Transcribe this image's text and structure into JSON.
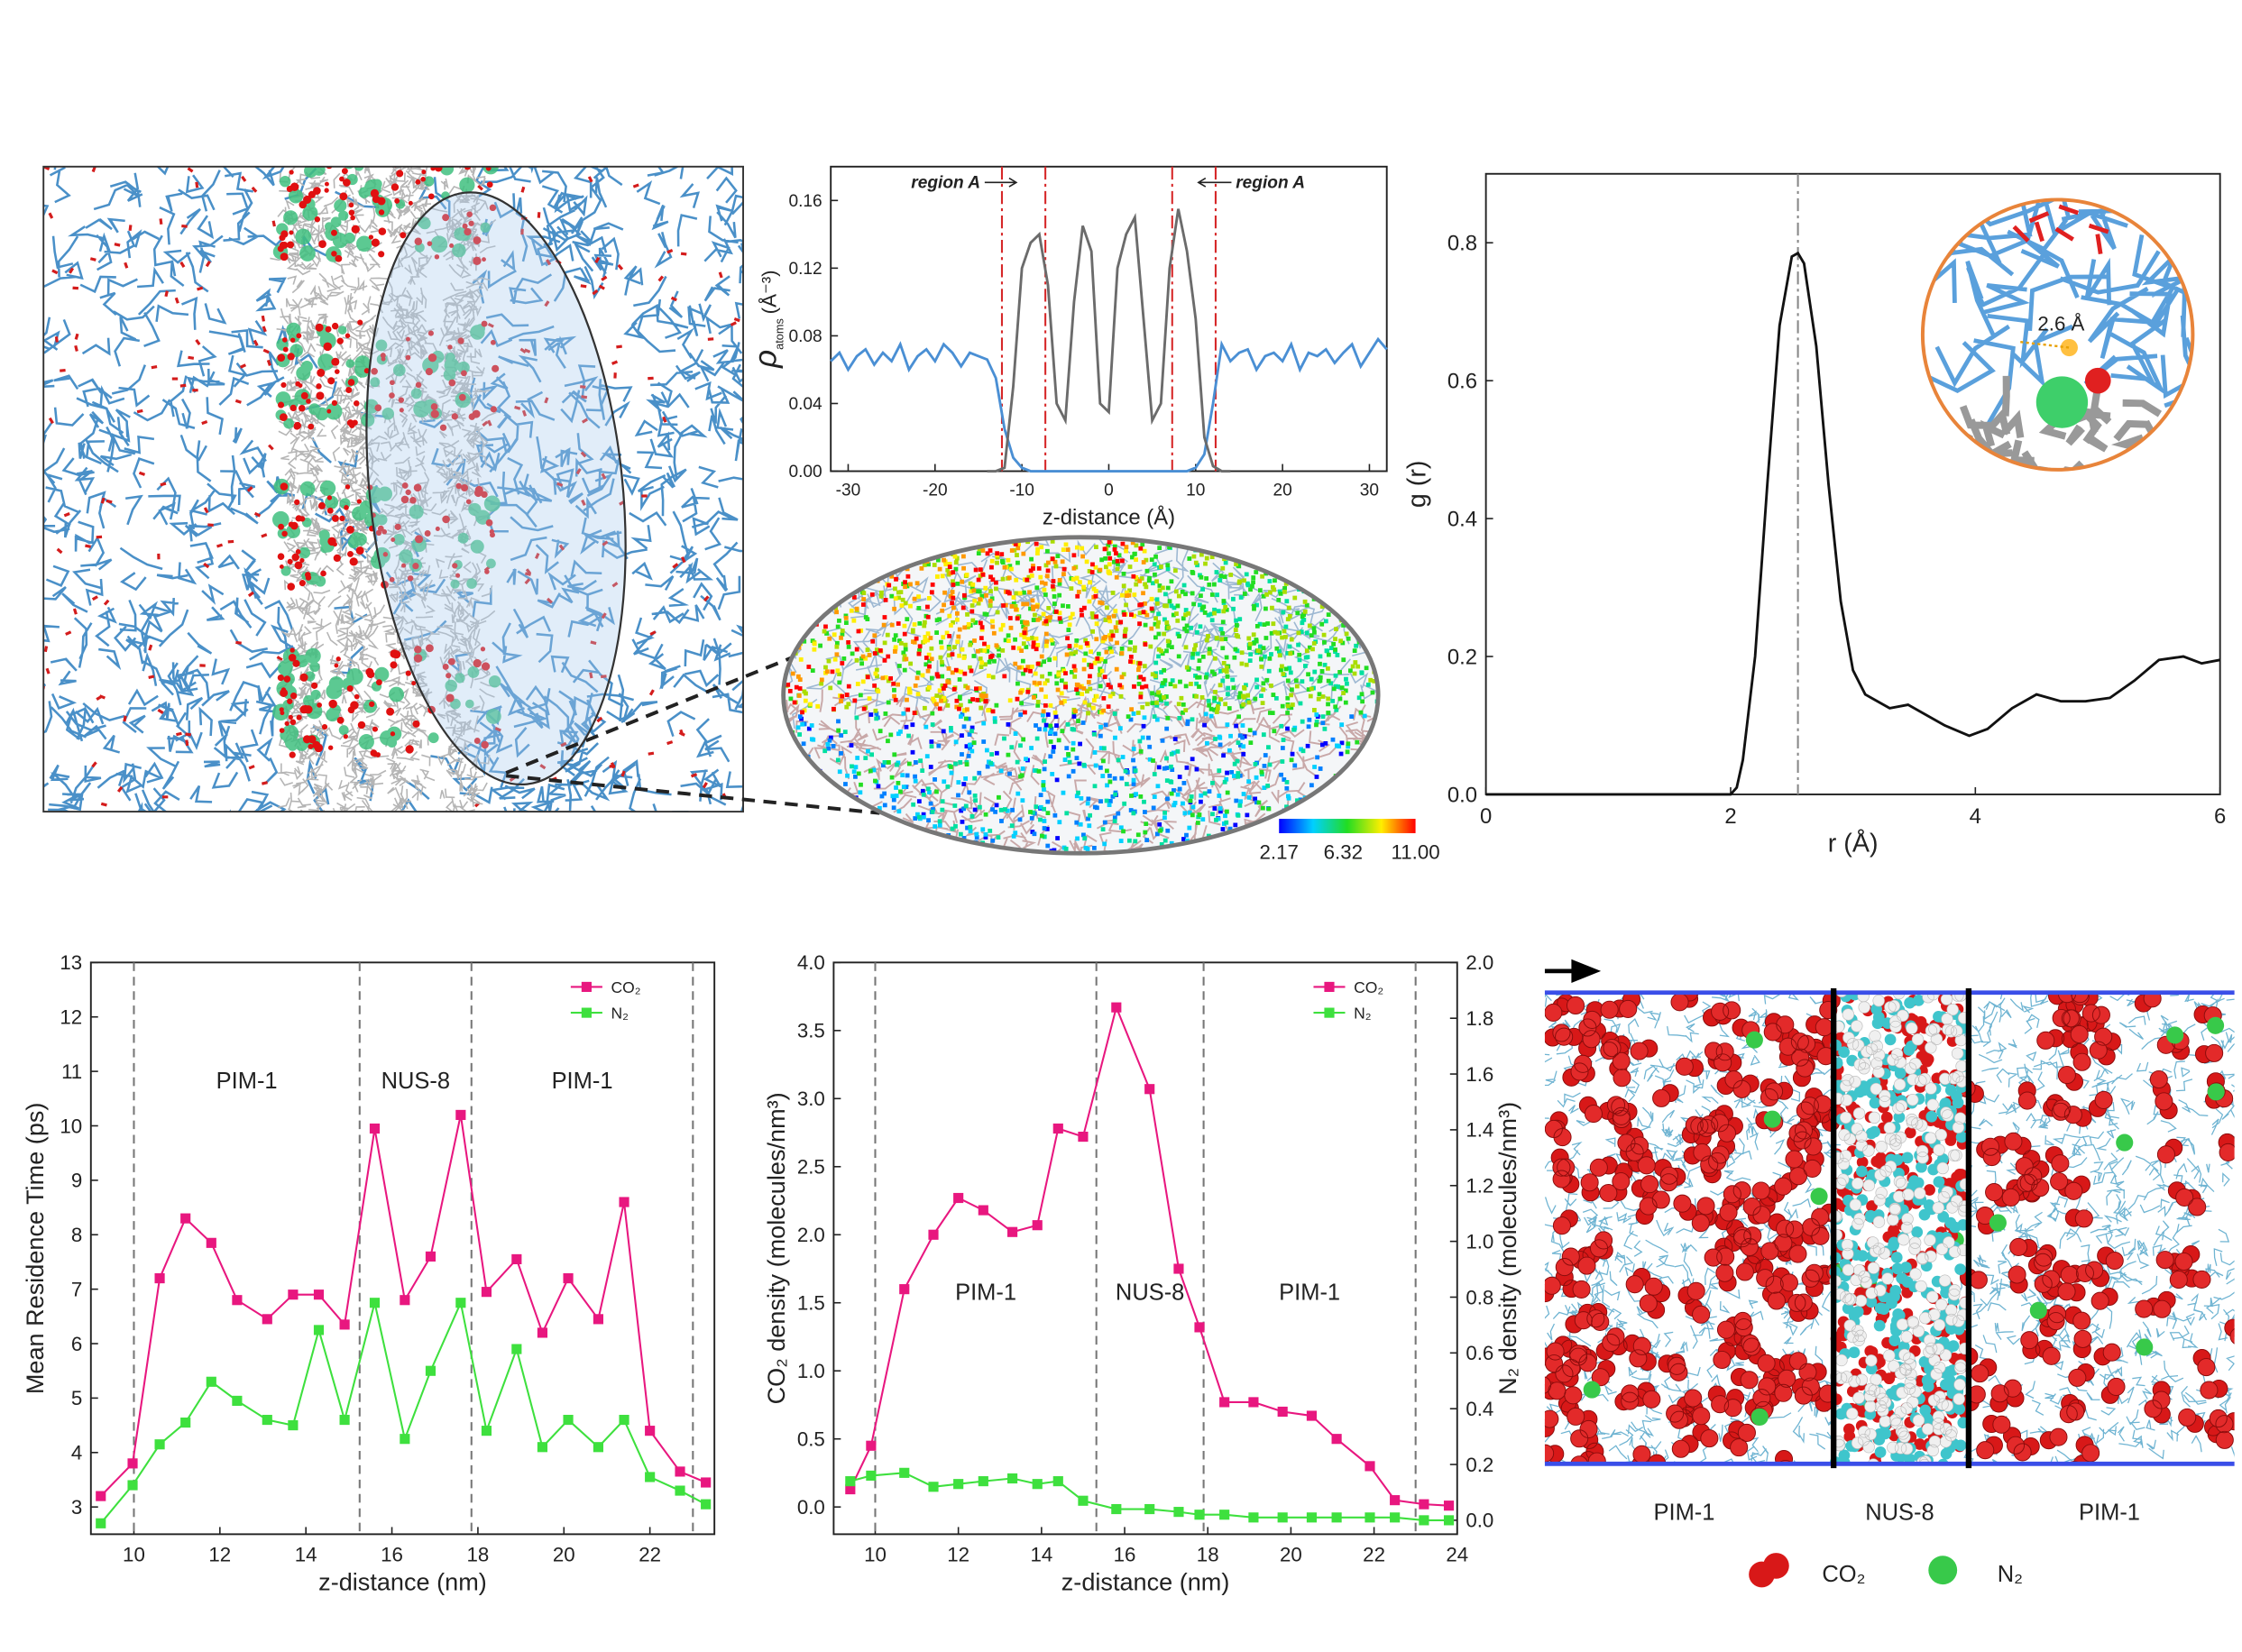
{
  "chart_data": [
    {
      "type": "line",
      "xlabel": "z-distance (Å)",
      "ylabel": {
        "symbol": "ρ",
        "subscript": "atoms",
        "unit": "(Å⁻³)"
      },
      "xlim": [
        -32,
        32
      ],
      "xticks": [
        -30,
        -20,
        -10,
        0,
        10,
        20,
        30
      ],
      "ylim": [
        0,
        0.18
      ],
      "yticks": [
        {
          "value": 0,
          "label": "0.00"
        },
        {
          "value": 0.04,
          "label": "0.04"
        },
        {
          "value": 0.08,
          "label": "0.08"
        },
        {
          "value": 0.12,
          "label": "0.12"
        },
        {
          "value": 0.16,
          "label": "0.16"
        }
      ],
      "vlines": [
        -12.3,
        -7.3,
        7.3,
        12.3
      ],
      "vline_color": "#d62728",
      "vline_style": "dashdot",
      "annotations": [
        "region A",
        "region A"
      ],
      "series": [
        {
          "color": "#4a8fd4",
          "x": [
            -32,
            -31,
            -30,
            -29,
            -28,
            -27,
            -26,
            -25,
            -24,
            -23,
            -22,
            -21,
            -20,
            -19,
            -18,
            -17,
            -16,
            -15,
            -14,
            -13,
            -12,
            -11,
            -10,
            -9,
            -8,
            -7,
            -6,
            -5,
            -4,
            -3,
            -2,
            -1,
            0,
            1,
            2,
            3,
            4,
            5,
            6,
            7,
            8,
            9,
            10,
            11,
            12,
            13,
            14,
            15,
            16,
            17,
            18,
            19,
            20,
            21,
            22,
            23,
            24,
            25,
            26,
            27,
            28,
            29,
            30,
            31,
            32
          ],
          "values": [
            0.065,
            0.07,
            0.06,
            0.068,
            0.072,
            0.063,
            0.07,
            0.065,
            0.075,
            0.06,
            0.068,
            0.072,
            0.065,
            0.075,
            0.07,
            0.062,
            0.07,
            0.068,
            0.066,
            0.055,
            0.025,
            0.008,
            0.002,
            0,
            0,
            0,
            0,
            0,
            0,
            0,
            0,
            0,
            0,
            0,
            0,
            0,
            0,
            0,
            0,
            0,
            0,
            0,
            0.002,
            0.01,
            0.04,
            0.075,
            0.065,
            0.07,
            0.072,
            0.06,
            0.068,
            0.07,
            0.065,
            0.075,
            0.06,
            0.07,
            0.068,
            0.072,
            0.064,
            0.07,
            0.075,
            0.062,
            0.07,
            0.078,
            0.072
          ]
        },
        {
          "color": "#6b6b6b",
          "x": [
            -14,
            -13,
            -12,
            -11,
            -10,
            -9,
            -8,
            -7,
            -6,
            -5,
            -4,
            -3,
            -2,
            -1,
            0,
            1,
            2,
            3,
            4,
            5,
            6,
            7,
            8,
            9,
            10,
            11,
            12,
            13,
            14
          ],
          "values": [
            0,
            0,
            0.002,
            0.05,
            0.12,
            0.135,
            0.14,
            0.11,
            0.04,
            0.03,
            0.1,
            0.145,
            0.13,
            0.04,
            0.035,
            0.12,
            0.14,
            0.15,
            0.09,
            0.03,
            0.04,
            0.12,
            0.155,
            0.13,
            0.09,
            0.02,
            0.003,
            0,
            0
          ]
        }
      ]
    },
    {
      "type": "line",
      "xlabel": "r (Å)",
      "ylabel": "g (r)",
      "xlim": [
        0,
        6
      ],
      "xticks": [
        0,
        2,
        4,
        6
      ],
      "ylim": [
        0,
        0.9
      ],
      "yticks": [
        {
          "value": 0,
          "label": "0.0"
        },
        {
          "value": 0.2,
          "label": "0.2"
        },
        {
          "value": 0.4,
          "label": "0.4"
        },
        {
          "value": 0.6,
          "label": "0.6"
        },
        {
          "value": 0.8,
          "label": "0.8"
        }
      ],
      "vlines": [
        2.55
      ],
      "vline_color": "#888888",
      "vline_style": "dashdot",
      "series": [
        {
          "color": "#111111",
          "x": [
            0,
            0.5,
            1,
            1.5,
            2,
            2.05,
            2.1,
            2.2,
            2.3,
            2.4,
            2.5,
            2.55,
            2.6,
            2.7,
            2.8,
            2.9,
            3.0,
            3.1,
            3.2,
            3.3,
            3.45,
            3.6,
            3.75,
            3.95,
            4.1,
            4.3,
            4.5,
            4.7,
            4.9,
            5.1,
            5.3,
            5.5,
            5.7,
            5.85,
            6.0
          ],
          "values": [
            0,
            0,
            0,
            0,
            0,
            0.01,
            0.05,
            0.2,
            0.45,
            0.68,
            0.78,
            0.785,
            0.77,
            0.65,
            0.45,
            0.28,
            0.18,
            0.145,
            0.135,
            0.125,
            0.13,
            0.115,
            0.1,
            0.085,
            0.095,
            0.125,
            0.145,
            0.135,
            0.135,
            0.14,
            0.165,
            0.195,
            0.2,
            0.19,
            0.195
          ]
        }
      ]
    },
    {
      "type": "line",
      "xlabel": "z-distance (nm)",
      "ylabel": "Mean Residence Time (ps)",
      "xlim": [
        9,
        23.5
      ],
      "xticks": [
        10,
        12,
        14,
        16,
        18,
        20,
        22
      ],
      "ylim": [
        2.5,
        13
      ],
      "yticks": [
        3,
        4,
        5,
        6,
        7,
        8,
        9,
        10,
        11,
        12,
        13
      ],
      "vlines": [
        10,
        15.25,
        17.85,
        23
      ],
      "vline_color": "#777777",
      "vline_style": "dashed",
      "regions": [
        "PIM-1",
        "NUS-8",
        "PIM-1"
      ],
      "legend": "upper right",
      "series": [
        {
          "name": "CO₂",
          "color": "#e8177f",
          "marker": "square",
          "x": [
            9.23,
            9.97,
            10.6,
            11.2,
            11.8,
            12.4,
            13.1,
            13.7,
            14.3,
            14.9,
            15.6,
            16.3,
            16.9,
            17.6,
            18.2,
            18.9,
            19.5,
            20.1,
            20.8,
            21.4,
            22.0,
            22.7,
            23.3
          ],
          "values": [
            3.2,
            3.8,
            7.2,
            8.3,
            7.85,
            6.8,
            6.45,
            6.9,
            6.9,
            6.35,
            9.95,
            6.8,
            7.6,
            10.2,
            6.95,
            7.55,
            6.2,
            7.2,
            6.45,
            8.6,
            4.4,
            3.65,
            3.45
          ]
        },
        {
          "name": "N₂",
          "color": "#3ee03e",
          "marker": "square",
          "x": [
            9.23,
            9.97,
            10.6,
            11.2,
            11.8,
            12.4,
            13.1,
            13.7,
            14.3,
            14.9,
            15.6,
            16.3,
            16.9,
            17.6,
            18.2,
            18.9,
            19.5,
            20.1,
            20.8,
            21.4,
            22.0,
            22.7,
            23.3
          ],
          "values": [
            2.7,
            3.4,
            4.15,
            4.55,
            5.3,
            4.95,
            4.6,
            4.5,
            6.25,
            4.6,
            6.75,
            4.25,
            5.5,
            6.75,
            4.4,
            5.9,
            4.1,
            4.6,
            4.1,
            4.6,
            3.55,
            3.3,
            3.05
          ]
        }
      ]
    },
    {
      "type": "line",
      "xlabel": "z-distance (nm)",
      "ylabel": "CO₂ density (molecules/nm³)",
      "y2label": "N₂ density (molecules/nm³)",
      "xlim": [
        9,
        24
      ],
      "xticks": [
        10,
        12,
        14,
        16,
        18,
        20,
        22,
        24
      ],
      "ylim": [
        -0.2,
        4.0
      ],
      "yticks": [
        {
          "value": 0,
          "label": "0.0"
        },
        {
          "value": 0.5,
          "label": "0.5"
        },
        {
          "value": 1,
          "label": "1.0"
        },
        {
          "value": 1.5,
          "label": "1.5"
        },
        {
          "value": 2,
          "label": "2.0"
        },
        {
          "value": 2.5,
          "label": "2.5"
        },
        {
          "value": 3,
          "label": "3.0"
        },
        {
          "value": 3.5,
          "label": "3.5"
        },
        {
          "value": 4,
          "label": "4.0"
        }
      ],
      "y2lim": [
        -0.05,
        2.0
      ],
      "y2ticks": [
        {
          "value": 0,
          "label": "0.0"
        },
        0.2,
        0.4,
        0.6,
        0.8,
        {
          "value": 1,
          "label": "1.0"
        },
        1.2,
        1.4,
        1.6,
        1.8,
        {
          "value": 2,
          "label": "2.0"
        }
      ],
      "vlines": [
        10,
        15.32,
        17.9,
        23
      ],
      "vline_color": "#777777",
      "vline_style": "dashed",
      "regions": [
        "PIM-1",
        "NUS-8",
        "PIM-1"
      ],
      "legend": "upper right",
      "series": [
        {
          "name": "CO₂",
          "color": "#e8177f",
          "marker": "square",
          "x": [
            9.4,
            9.9,
            10.7,
            11.4,
            12.0,
            12.6,
            13.3,
            13.9,
            14.4,
            15.0,
            15.8,
            16.6,
            17.3,
            17.8,
            18.4,
            19.1,
            19.8,
            20.5,
            21.1,
            21.9,
            22.5,
            23.2,
            23.8
          ],
          "values": [
            0.13,
            0.45,
            1.6,
            2.0,
            2.27,
            2.18,
            2.02,
            2.07,
            2.78,
            2.72,
            3.67,
            3.07,
            1.75,
            1.32,
            0.77,
            0.77,
            0.7,
            0.67,
            0.5,
            0.3,
            0.05,
            0.02,
            0.01
          ]
        },
        {
          "name": "N₂",
          "color": "#3ee03e",
          "marker": "square",
          "axis": "y2",
          "x": [
            9.4,
            9.9,
            10.7,
            11.4,
            12.0,
            12.6,
            13.3,
            13.9,
            14.4,
            15.0,
            15.8,
            16.6,
            17.3,
            17.8,
            18.4,
            19.1,
            19.8,
            20.5,
            21.1,
            21.9,
            22.5,
            23.2,
            23.8
          ],
          "values": [
            0.14,
            0.16,
            0.17,
            0.12,
            0.13,
            0.14,
            0.15,
            0.13,
            0.14,
            0.07,
            0.04,
            0.04,
            0.03,
            0.02,
            0.02,
            0.01,
            0.01,
            0.01,
            0.01,
            0.01,
            0.01,
            0.0,
            0.0
          ]
        }
      ]
    }
  ],
  "images": {
    "heatmap": {
      "colorbar_lim": [
        2.17,
        11
      ],
      "colorbar_ticks": [
        2.17,
        6.32,
        {
          "value": 11,
          "label": "11.00"
        }
      ]
    },
    "inset": {
      "label": "2.6 Å"
    },
    "snapshot": {
      "labels": [
        "PIM-1",
        "NUS-8",
        "PIM-1"
      ],
      "legend": [
        "CO₂",
        "N₂"
      ]
    }
  }
}
